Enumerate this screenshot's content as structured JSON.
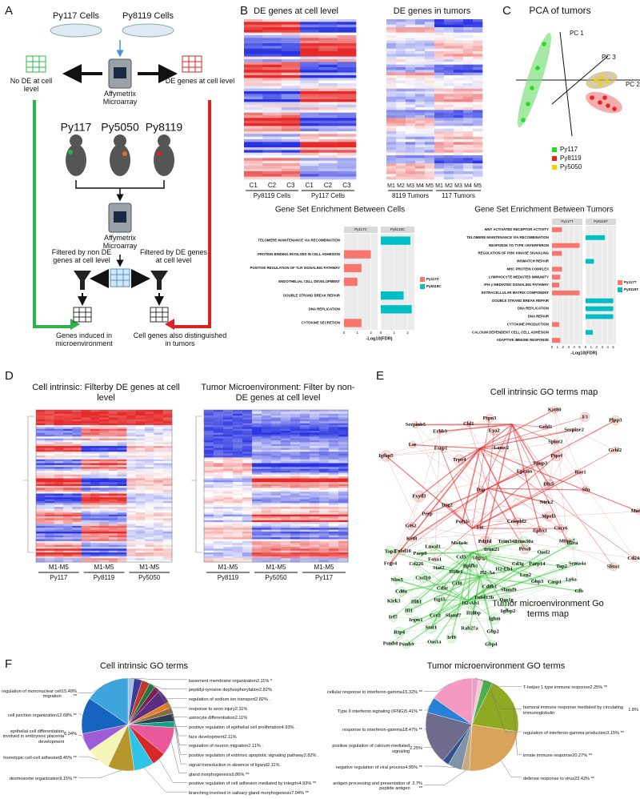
{
  "panel_letters": [
    "A",
    "B",
    "C",
    "D",
    "E",
    "F"
  ],
  "panel_a": {
    "cell_lines": [
      "Py117 Cells",
      "Py8119 Cells"
    ],
    "microarray": "Affymetrix Microarray",
    "no_de": "No DE at cell level",
    "de": "DE genes at cell level",
    "tumors": [
      "Py117",
      "Py5050",
      "Py8119"
    ],
    "filter_non_de": "Filtered by non DE genes at cell level",
    "filter_de": "Filtered by DE genes at cell level",
    "out_left": "Genes induced in microenvironment",
    "out_right": "Cell genes also distinguished in tumors"
  },
  "panel_b": {
    "heatmap_cells": {
      "title": "DE genes at cell level",
      "columns": [
        "C1",
        "C2",
        "C3",
        "C1",
        "C2",
        "C3"
      ],
      "groups": [
        "Py8119 Cells",
        "Py117 Cells"
      ]
    },
    "heatmap_tumors": {
      "title": "DE genes in tumors",
      "columns": [
        "M1",
        "M2",
        "M3",
        "M4",
        "M5",
        "M1",
        "M2",
        "M3",
        "M4",
        "M5"
      ],
      "groups": [
        "8119 Tumors",
        "117 Tumors"
      ]
    }
  },
  "gsea_cells": {
    "type": "bar",
    "orientation": "horizontal",
    "title": "Gene Set Enrichment Between Cells",
    "x_label": "-Log10(FDR)",
    "categories": [
      "TELOMERE MAINTENANCE VIA RECOMBINATION",
      "PROTEIN BINDING INVOLVED IN CELL ADHESION",
      "POSITIVE REGULATION OF TLR SIGNALING PATHWAY",
      "ENDOTHELIAL CELL DEVELOPMENT",
      "DOUBLE STRAND BREAK REPAIR",
      "DNA REPLICATION",
      "CYTOKINE SECRETION"
    ],
    "series": [
      {
        "name": "Py117C",
        "color": "#f8766d",
        "values": [
          null,
          2.0,
          1.3,
          1.0,
          null,
          null,
          1.3
        ]
      },
      {
        "name": "Py8119C",
        "color": "#00bfc4",
        "values": [
          2.2,
          null,
          null,
          null,
          1.7,
          2.3,
          null
        ]
      }
    ],
    "xlim": [
      0,
      2.5
    ],
    "xticks": [
      0,
      1,
      2
    ],
    "grid": true,
    "legend": "right"
  },
  "gsea_tumors": {
    "type": "bar",
    "orientation": "horizontal",
    "title": "Gene Set Enrichment Between Tumors",
    "x_label": "-Log10(FDR)",
    "categories": [
      "WNT ACTIVATED RECEPTOR ACTIVITY",
      "TELOMERE MAINTENANCE VIA RECOMBINATION",
      "RESPONSE TO TYPE I INTERFERON",
      "REGULATION OF PI3K KINASE SIGNALING",
      "MISMATCH REPAIR",
      "MHC PROTEIN COMPLEX",
      "LYMPHOCYTE MEDIATED IMMUNITY",
      "IFN-γ MEDIATED SIGNALING PATHWAY",
      "EXTRACELLULAR MATRIX COMPONENT",
      "DOUBLE STRAND BREAK REPAIR",
      "DNA REPLICATION",
      "DNA REPAIR",
      "CYTOKINE PRODUCTION",
      "CALCIUM DEPENDENT CELL CELL ADHESION",
      "ADAPTIVE IMMUNE RESPONSE"
    ],
    "series": [
      {
        "name": "Py117T",
        "color": "#f8766d",
        "values": [
          1.8,
          null,
          5,
          1.8,
          null,
          1.8,
          1.5,
          1.3,
          5,
          null,
          null,
          null,
          1.3,
          null,
          1.5
        ]
      },
      {
        "name": "Py8119T",
        "color": "#00bfc4",
        "values": [
          null,
          3.5,
          null,
          null,
          1.5,
          null,
          null,
          null,
          null,
          5,
          5,
          5,
          null,
          1.3,
          null
        ]
      }
    ],
    "xlim": [
      0,
      5.5
    ],
    "xticks": [
      0,
      1,
      2,
      3,
      4,
      5
    ],
    "grid": true,
    "legend": "right"
  },
  "panel_c": {
    "title": "PCA of tumors",
    "axes": [
      "PC 1",
      "PC 2",
      "PC 3"
    ],
    "legend": [
      {
        "name": "Py117",
        "color": "#22dd22"
      },
      {
        "name": "Py8119",
        "color": "#ee2222"
      },
      {
        "name": "Py5050",
        "color": "#f2d200"
      }
    ]
  },
  "panel_d": {
    "left": {
      "title": "Cell intrinsic: Filterby DE genes at cell level",
      "groups": [
        {
          "range": "M1-M5",
          "name": "Py117"
        },
        {
          "range": "M1-M5",
          "name": "Py8119"
        },
        {
          "range": "M1-M5",
          "name": "Py5050"
        }
      ]
    },
    "right": {
      "title": "Tumor Microenvironment: Filter by non-DE genes at cell level",
      "groups": [
        {
          "range": "M1-M5",
          "name": "Py8119"
        },
        {
          "range": "M1-M5",
          "name": "Py5050"
        },
        {
          "range": "M1-M5",
          "name": "Py117"
        }
      ]
    }
  },
  "panel_e": {
    "title_red": "Cell intrinsic GO terms map",
    "title_green": "Tumor microenvironment Go terms map",
    "red_genes": [
      "Crispld2",
      "Sfn",
      "Adgrg1",
      "Shtn1",
      "G0s2",
      "Timp3",
      "Grhl2",
      "Spint2",
      "Lamc2",
      "Tnfsf10",
      "Foxa1",
      "Serpinb5",
      "Krt80",
      "Ntrk2",
      "Esrp1",
      "Dlx5",
      "Pof1b",
      "Krt8",
      "Dsg2",
      "Dsp",
      "F3",
      "Fst",
      "Igfbp5",
      "Grhl1",
      "Lsr",
      "Perp",
      "Mpzl3",
      "Ephx1",
      "Trpv4",
      "Epcam",
      "Ror1",
      "Pdgfd",
      "Fcgr4",
      "Plpp3",
      "Ptpn3",
      "Fxyd3",
      "Serpine2",
      "Prss8",
      "Ptprf",
      "Mtmr7",
      "Matn4",
      "Chl1",
      "Cxcr6",
      "Erbb3",
      "Cd24a",
      "Eya2"
    ],
    "green_genes": [
      "Irf9",
      "Lmcd1",
      "Psmb9",
      "Igfbp2",
      "Tap1",
      "Cd8b1",
      "Cd3g",
      "Cfb",
      "Slamf7",
      "Tap2",
      "Il18bp",
      "H2-Ab1",
      "H2-Eb1",
      "H2-Aa",
      "Gbp4",
      "Gbp3",
      "Gbp2",
      "Oasl2",
      "Stat1",
      "Stat2",
      "Isg15",
      "Irf7",
      "Oas1a",
      "Oas1g",
      "Trim30a",
      "Trim21",
      "Rtp4",
      "Trim34a",
      "Ifi1",
      "Cxcl10",
      "Ccl8",
      "Slamf9",
      "Il2ra",
      "Ifih1",
      "Cd8a",
      "Bpifb1",
      "Tnfsf13b",
      "Il18r1",
      "Cd226",
      "Cd3e",
      "Ccr2",
      "Irgm1",
      "Parp9",
      "Parp14",
      "Nlrc5",
      "Casp1",
      "Psmb8",
      "Ly6a",
      "Lcn2",
      "Ms4a4c",
      "Sema4a",
      "Kirk3",
      "Rab27a",
      "Ighm",
      "Ccl5"
    ]
  },
  "panel_f": {
    "left": {
      "type": "pie",
      "title": "Cell intrinsic GO terms",
      "slices": [
        {
          "name": "basement membrane organization",
          "value": 2.11,
          "value_label": "2.11% *",
          "color": "#9cc3e6"
        },
        {
          "name": "peptidyl-tyrosine dephosphorylation",
          "value": 2.82,
          "value_label": "2.82%",
          "color": "#3b3b98"
        },
        {
          "name": "regulation of sodium ion transport",
          "value": 2.82,
          "value_label": "2.82% .",
          "color": "#c0392b"
        },
        {
          "name": "response to axon injury",
          "value": 2.11,
          "value_label": "2.11%",
          "color": "#1b7a3a"
        },
        {
          "name": "astrocyte differentiation",
          "value": 2.11,
          "value_label": "2.11%",
          "color": "#7b1f4f"
        },
        {
          "name": "positive regulation of epithelial cell proliferation",
          "value": 4.93,
          "value_label": "4.93% .",
          "color": "#5a2d82"
        },
        {
          "name": "face development",
          "value": 2.11,
          "value_label": "2.11%",
          "color": "#e67e22"
        },
        {
          "name": "regulation of neuron migration",
          "value": 2.11,
          "value_label": "2.11% .",
          "color": "#8e6a3a"
        },
        {
          "name": "positive regulation of extrinsic apoptotic signaling pathway",
          "value": 2.82,
          "value_label": "2.82% .",
          "color": "#2c3e50"
        },
        {
          "name": "signal transduction in absence of ligand",
          "value": 2.11,
          "value_label": "2.11% .",
          "color": "#16a085"
        },
        {
          "name": "gland morphogenesis",
          "value": 9.86,
          "value_label": "9.86% **",
          "color": "#e8589a"
        },
        {
          "name": "positive regulation of cell adhesion mediated by integrin",
          "value": 4.93,
          "value_label": "4.93% **",
          "color": "#d62828"
        },
        {
          "name": "branching involved in salivary gland morphogenesis",
          "value": 7.04,
          "value_label": "7.04% **",
          "color": "#2ec4e6"
        },
        {
          "name": "desmosome organization",
          "value": 9.15,
          "value_label": "9.15% **",
          "color": "#b8962e"
        },
        {
          "name": "homotypic cell-cell adhesion",
          "value": 8.45,
          "value_label": "8.45% **",
          "color": "#f3f6b8"
        },
        {
          "name": "epithelial cell differentiation involved in embryonic placenta development",
          "value": 6.34,
          "value_label": "6.34% .",
          "color": "#a05cd6"
        },
        {
          "name": "cell junction organization",
          "value": 12.68,
          "value_label": "12.68% **",
          "color": "#1565c0"
        },
        {
          "name": "regulation of mononuclear cell migration",
          "value": 15.49,
          "value_label": "15.49% **",
          "color": "#3fa3dc"
        }
      ]
    },
    "right": {
      "type": "pie",
      "title": "Tumor microenvironment GO terms",
      "slices": [
        {
          "name": "T-helper 1 type immune response",
          "value": 2.25,
          "value_label": "2.25% **",
          "color": "#e8a0c8"
        },
        {
          "name": "humoral immune response mediated by circulating immunoglobulin",
          "value": 1.8,
          "value_label": "1.8%",
          "color": "#f5c6d6"
        },
        {
          "name": "regulation of interferon-gamma production",
          "value": 3.15,
          "value_label": "3.15% **",
          "color": "#4caf50"
        },
        {
          "name": "innate immune response",
          "value": 20.27,
          "value_label": "20.27% **",
          "color": "#8faa22"
        },
        {
          "name": "defense response to virus",
          "value": 23.42,
          "value_label": "23.42% **",
          "color": "#d9a35c"
        },
        {
          "name": "antigen processing and presentation of peptide antigen",
          "value": 2.7,
          "value_label": "2.7% **",
          "color": "#c8ab7e"
        },
        {
          "name": "negative regulation of viral process",
          "value": 4.95,
          "value_label": "4.95% **",
          "color": "#7f93a8"
        },
        {
          "name": "positive regulation of calcium-mediated signaling",
          "value": 2.25,
          "value_label": "2.25%",
          "color": "#34508c"
        },
        {
          "name": "response to interferon-gamma",
          "value": 18.47,
          "value_label": "18.47% **",
          "color": "#6f6b8c"
        },
        {
          "name": "Type II interferon signaling (IFNG)",
          "value": 5.41,
          "value_label": "5.41% **",
          "color": "#2a7fd6"
        },
        {
          "name": "cellular response to interferon-gamma",
          "value": 15.32,
          "value_label": "15.32% **",
          "color": "#f49ac1"
        }
      ]
    }
  }
}
